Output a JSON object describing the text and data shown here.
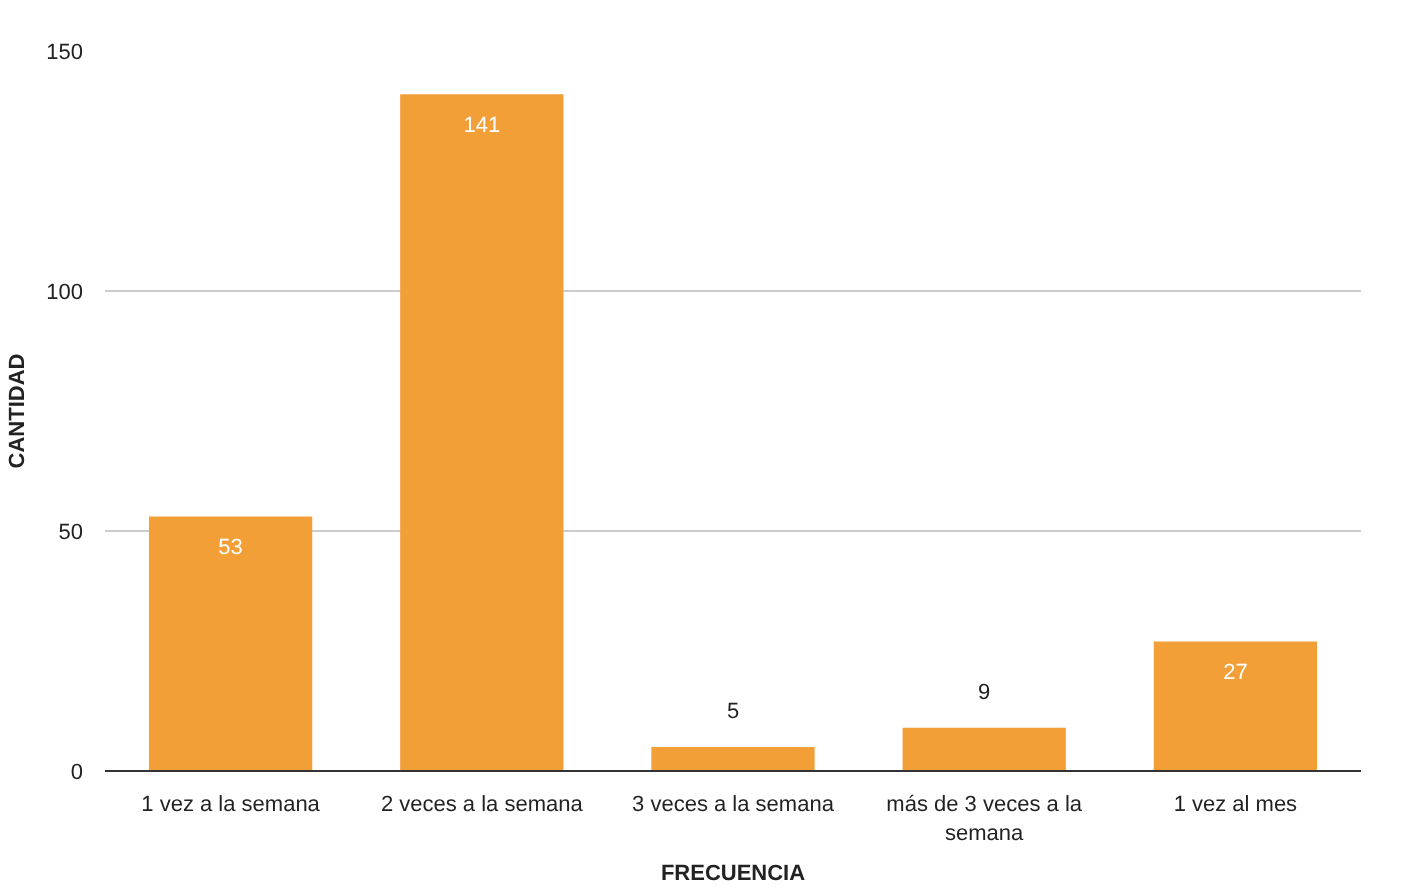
{
  "chart_data": {
    "type": "bar",
    "xlabel": "FRECUENCIA",
    "ylabel": "CANTIDAD",
    "categories": [
      "1 vez a la semana",
      "2 veces a la semana",
      "3 veces a la semana",
      "más de 3 veces a la semana",
      "1 vez al mes"
    ],
    "values": [
      53,
      141,
      5,
      9,
      27
    ],
    "color": "#f29f38",
    "ylim": [
      0,
      150
    ],
    "yticks": [
      0,
      50,
      100,
      150
    ],
    "grid": "y",
    "data_labels": true
  }
}
